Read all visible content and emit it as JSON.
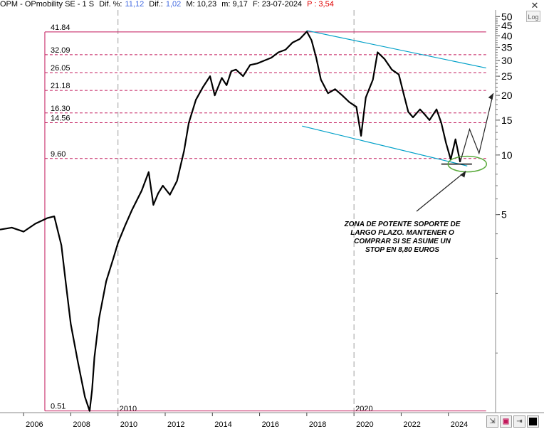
{
  "header": {
    "ticker": "OPM - OPmobility SE - 1 S",
    "dif_pct_label": "Dif. %:",
    "dif_pct_value": "11,12",
    "dif_label": "Dif.:",
    "dif_value": "1,02",
    "max_label": "M: 10,23",
    "min_label": "m: 9,17",
    "date_label": "F: 23-07-2024",
    "p_label": "P : 3,54"
  },
  "controls": {
    "log_label": "Log",
    "close_icon": "close-icon"
  },
  "annotation": [
    "ZONA DE POTENTE SOPORTE DE",
    "LARGO PLAZO. MANTENER O",
    "COMPRAR SI SE ASUME UN",
    "STOP EN 8,80 EUROS"
  ],
  "colors": {
    "levels": "#c2185b",
    "trend": "#00a0c8",
    "price": "#000000",
    "ellipse": "#5aaa3c",
    "grid": "#a0a0a0"
  },
  "chart_data": {
    "type": "line",
    "scale": "log",
    "ylim": [
      0.5,
      54
    ],
    "y_ticks": [
      5,
      10,
      15,
      20,
      25,
      30,
      35,
      40,
      45,
      50
    ],
    "x_ticks": [
      "2006",
      "2008",
      "2010",
      "2012",
      "2014",
      "2016",
      "2018",
      "2020",
      "2022",
      "2024"
    ],
    "x_year_markers": [
      "2010",
      "2020"
    ],
    "levels": [
      "41.84",
      "32.09",
      "26.05",
      "21.18",
      "16.30",
      "14.56",
      "9.60",
      "0.51"
    ],
    "series": [
      {
        "x": [
          2005.0,
          2005.5,
          2006.0,
          2006.5,
          2007.0,
          2007.3,
          2007.6,
          2007.8,
          2008.0,
          2008.3,
          2008.6,
          2008.8,
          2008.9,
          2009.0,
          2009.2,
          2009.5,
          2009.8,
          2010.0,
          2010.3,
          2010.6,
          2011.0,
          2011.3,
          2011.5,
          2011.7,
          2011.9,
          2012.2,
          2012.5,
          2012.8,
          2013.0,
          2013.3,
          2013.6,
          2013.9,
          2014.1,
          2014.4,
          2014.6,
          2014.8,
          2015.0,
          2015.3,
          2015.6,
          2015.9,
          2016.2,
          2016.5,
          2016.8,
          2017.1,
          2017.4,
          2017.7,
          2018.0,
          2018.2,
          2018.4,
          2018.6,
          2018.9,
          2019.2,
          2019.5,
          2019.8,
          2020.1,
          2020.3,
          2020.5,
          2020.8,
          2021.0,
          2021.3,
          2021.6,
          2021.9,
          2022.1,
          2022.3,
          2022.5,
          2022.8,
          2023.0,
          2023.2,
          2023.5,
          2023.7,
          2023.9,
          2024.1,
          2024.3,
          2024.5
        ],
        "y": [
          4.2,
          4.3,
          4.1,
          4.5,
          4.8,
          4.9,
          3.5,
          2.2,
          1.4,
          0.9,
          0.6,
          0.51,
          0.65,
          0.95,
          1.5,
          2.3,
          3.0,
          3.6,
          4.4,
          5.3,
          6.6,
          8.2,
          5.6,
          6.4,
          7.0,
          6.3,
          7.4,
          10.5,
          14.5,
          19.0,
          22.0,
          25.0,
          20.0,
          24.5,
          22.5,
          26.5,
          27.0,
          25.0,
          28.5,
          29.0,
          30.0,
          31.0,
          33.0,
          34.0,
          37.0,
          38.5,
          42.0,
          38.0,
          31.0,
          24.0,
          20.5,
          21.5,
          20.0,
          18.5,
          17.5,
          12.5,
          19.5,
          24.0,
          33.0,
          30.5,
          27.0,
          25.5,
          20.5,
          16.5,
          15.5,
          17.0,
          16.0,
          15.0,
          17.0,
          14.5,
          11.5,
          9.5,
          12.0,
          9.2
        ]
      }
    ],
    "projection": {
      "x": [
        2024.5,
        2024.9,
        2025.3,
        2025.9
      ],
      "y": [
        9.2,
        13.5,
        10.2,
        20.5
      ]
    },
    "trendlines": [
      {
        "x": [
          2018.0,
          2025.6
        ],
        "y": [
          42.5,
          27.5
        ]
      },
      {
        "x": [
          2017.8,
          2024.8
        ],
        "y": [
          14.0,
          8.8
        ]
      }
    ],
    "support_line": {
      "x": [
        2023.7,
        2025.0
      ],
      "y": [
        9.0,
        9.0
      ]
    },
    "ellipse_center": {
      "x": 2024.8,
      "y": 9.0
    }
  }
}
